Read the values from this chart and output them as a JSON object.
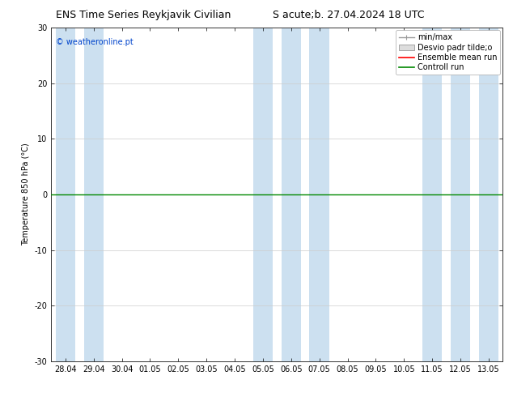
{
  "title_left": "ENS Time Series Reykjavik Civilian",
  "title_right": "S acute;b. 27.04.2024 18 UTC",
  "ylabel": "Temperature 850 hPa (°C)",
  "watermark": "© weatheronline.pt",
  "ylim": [
    -30,
    30
  ],
  "yticks": [
    -30,
    -20,
    -10,
    0,
    10,
    20,
    30
  ],
  "xtick_labels": [
    "28.04",
    "29.04",
    "30.04",
    "01.05",
    "02.05",
    "03.05",
    "04.05",
    "05.05",
    "06.05",
    "07.05",
    "08.05",
    "09.05",
    "10.05",
    "11.05",
    "12.05",
    "13.05"
  ],
  "shaded_color": "#cce0f0",
  "shaded_bands": [
    0,
    1,
    7,
    8,
    9,
    13,
    14,
    15
  ],
  "green_line_y": 0,
  "num_cols": 16,
  "legend_item1": "min/max",
  "legend_item2": "Desvio padr tilde;o",
  "legend_item3": "Ensemble mean run",
  "legend_item4": "Controll run",
  "color_red": "#ff0000",
  "color_green": "#008800",
  "color_gray_line": "#999999",
  "color_gray_fill": "#cccccc",
  "watermark_color": "#0044cc",
  "title_fontsize": 9,
  "axis_fontsize": 7,
  "legend_fontsize": 7
}
